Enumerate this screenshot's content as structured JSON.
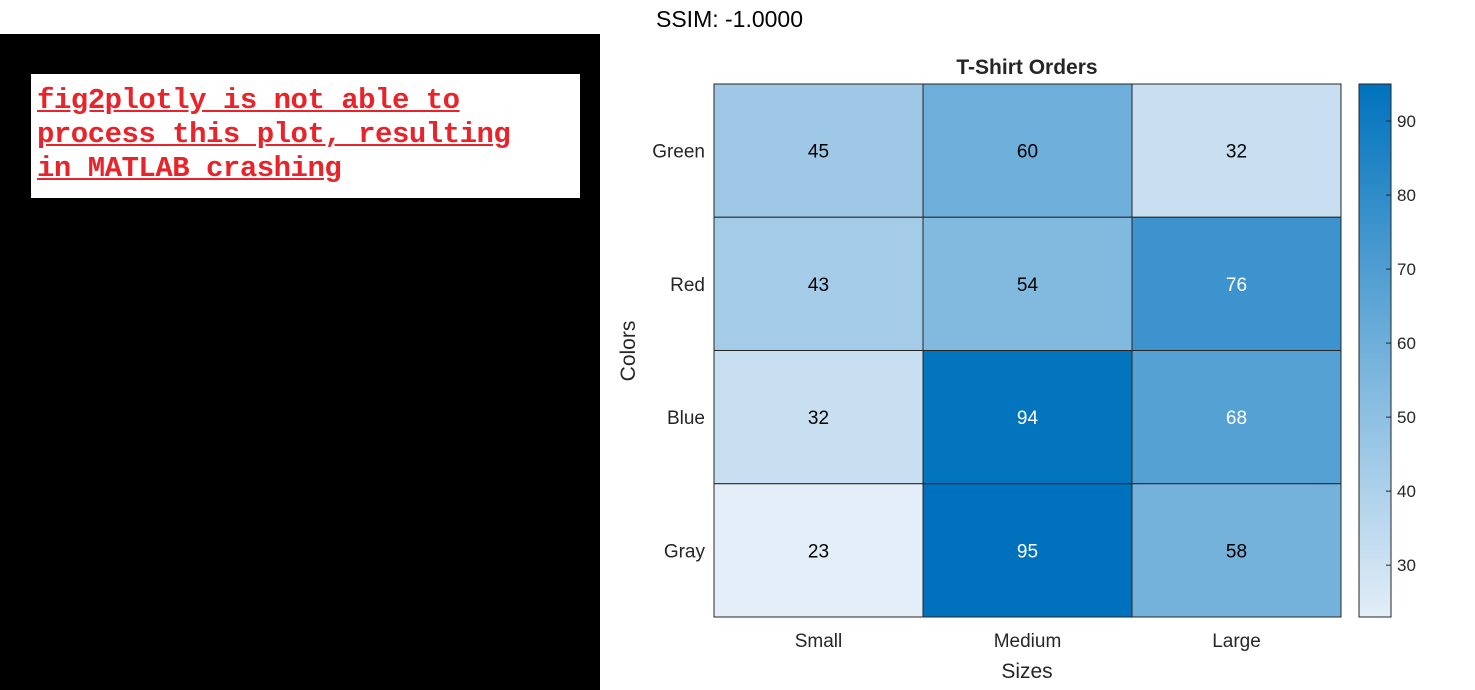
{
  "ssim_label": "SSIM: -1.0000",
  "error_message": "fig2plotly is not able to\nprocess this plot, resulting\nin MATLAB crashing",
  "colors": {
    "error_text": "#e8242a",
    "colormap_low": "#e3eef8",
    "colormap_high": "#0072bd"
  },
  "chart_data": {
    "type": "heatmap",
    "title": "T-Shirt Orders",
    "xlabel": "Sizes",
    "ylabel": "Colors",
    "x_categories": [
      "Small",
      "Medium",
      "Large"
    ],
    "y_categories": [
      "Green",
      "Red",
      "Blue",
      "Gray"
    ],
    "values": [
      [
        45,
        60,
        32
      ],
      [
        43,
        54,
        76
      ],
      [
        32,
        94,
        68
      ],
      [
        23,
        95,
        58
      ]
    ],
    "colorbar": {
      "min": 23,
      "max": 95,
      "ticks": [
        30,
        40,
        50,
        60,
        70,
        80,
        90
      ]
    }
  }
}
